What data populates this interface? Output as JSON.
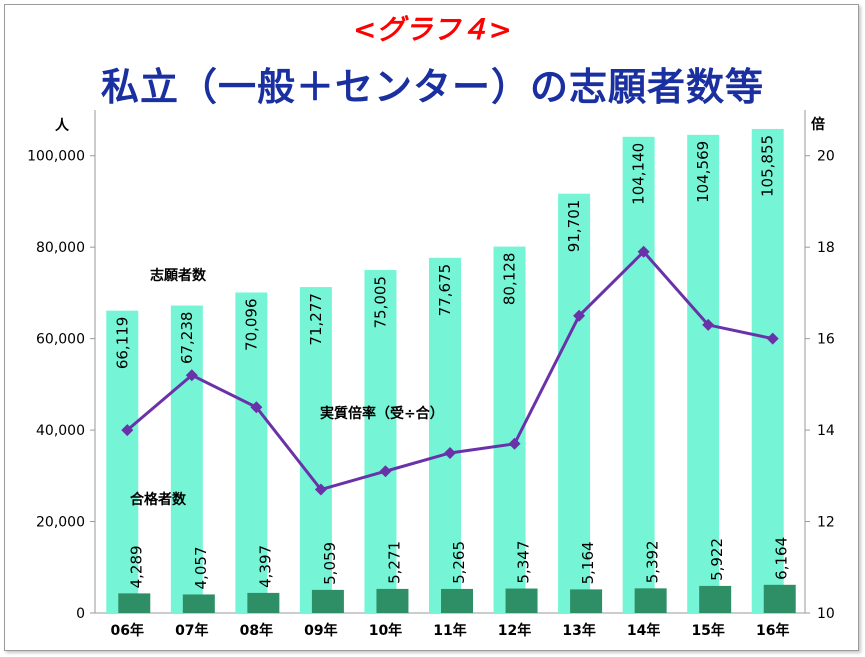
{
  "header": {
    "subtitle": "<グラフ４>",
    "title": "私立（一般＋センター）の志願者数等"
  },
  "colors": {
    "applicants_bar": "#76f5d6",
    "passers_bar": "#2e8f66",
    "ratio_line": "#6a32a8",
    "subtitle": "#ff0000",
    "title": "#1a2fa0"
  },
  "chart_data": {
    "type": "bar",
    "categories": [
      "06年",
      "07年",
      "08年",
      "09年",
      "10年",
      "11年",
      "12年",
      "13年",
      "14年",
      "15年",
      "16年"
    ],
    "series": [
      {
        "name": "志願者数",
        "type": "bar",
        "axis": "left",
        "values": [
          66119,
          67238,
          70096,
          71277,
          75005,
          77675,
          80128,
          91701,
          104140,
          104569,
          105855
        ],
        "labels": [
          "66,119",
          "67,238",
          "70,096",
          "71,277",
          "75,005",
          "77,675",
          "80,128",
          "91,701",
          "104,140",
          "104,569",
          "105,855"
        ]
      },
      {
        "name": "合格者数",
        "type": "bar",
        "axis": "left",
        "values": [
          4289,
          4057,
          4397,
          5059,
          5271,
          5265,
          5347,
          5164,
          5392,
          5922,
          6164
        ],
        "labels": [
          "4,289",
          "4,057",
          "4,397",
          "5,059",
          "5,271",
          "5,265",
          "5,347",
          "5,164",
          "5,392",
          "5,922",
          "6,164"
        ]
      },
      {
        "name": "実質倍率（受÷合）",
        "type": "line",
        "axis": "right",
        "values": [
          14.0,
          15.2,
          14.5,
          12.7,
          13.1,
          13.5,
          13.7,
          16.5,
          17.9,
          16.3,
          16.0
        ]
      }
    ],
    "y_left": {
      "unit": "人",
      "ylim": [
        0,
        110000
      ],
      "ticks": [
        0,
        20000,
        40000,
        60000,
        80000,
        100000
      ],
      "tick_labels": [
        "0",
        "20,000",
        "40,000",
        "60,000",
        "80,000",
        "100,000"
      ]
    },
    "y_right": {
      "unit": "倍",
      "ylim": [
        10,
        21
      ],
      "ticks": [
        10,
        12,
        14,
        16,
        18,
        20
      ],
      "tick_labels": [
        "10",
        "12",
        "14",
        "16",
        "18",
        "20"
      ]
    },
    "grid": false,
    "legend": "none"
  }
}
